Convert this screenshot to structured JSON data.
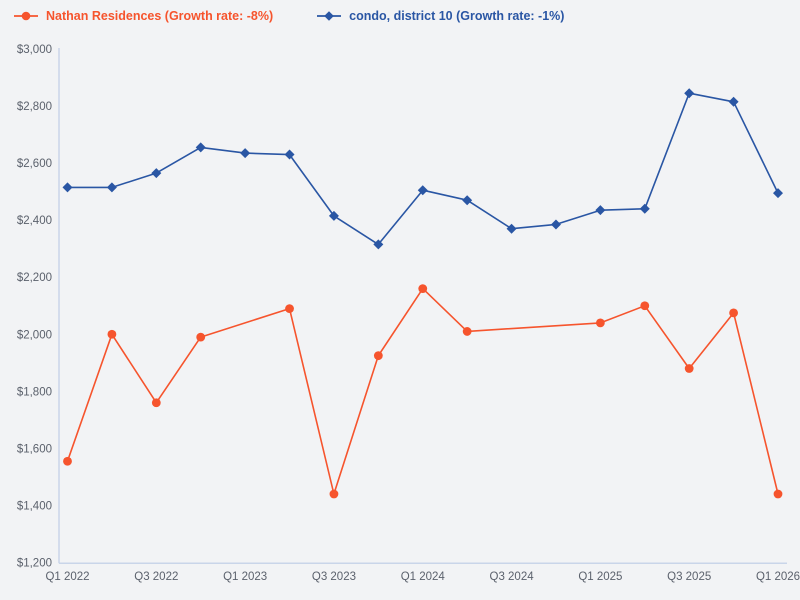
{
  "page": {
    "background_color": "#F2F3F5",
    "axis_color": "#C9D5E9",
    "tick_label_color": "#5B616C"
  },
  "legend": {
    "items": [
      {
        "label": "Nathan Residences (Growth rate: -8%)",
        "color": "#F6542D",
        "marker": "circle"
      },
      {
        "label": "condo, district 10 (Growth rate: -1%)",
        "color": "#2A56A4",
        "marker": "diamond"
      }
    ]
  },
  "chart_data": {
    "type": "line",
    "x": [
      "Q1 2022",
      "Q2 2022",
      "Q3 2022",
      "Q4 2022",
      "Q1 2023",
      "Q2 2023",
      "Q3 2023",
      "Q4 2023",
      "Q1 2024",
      "Q2 2024",
      "Q3 2024",
      "Q4 2024",
      "Q1 2025",
      "Q2 2025",
      "Q3 2025",
      "Q4 2025",
      "Q1 2026"
    ],
    "series": [
      {
        "name": "Nathan Residences",
        "legend_label": "Nathan Residences (Growth rate: -8%)",
        "growth_rate": "-8%",
        "color": "#F6542D",
        "marker": "circle",
        "values": [
          1555,
          2000,
          1760,
          1990,
          null,
          2090,
          1440,
          1925,
          2160,
          2010,
          null,
          null,
          2040,
          2100,
          1880,
          2075,
          1440
        ]
      },
      {
        "name": "condo, district 10",
        "legend_label": "condo, district 10 (Growth rate: -1%)",
        "growth_rate": "-1%",
        "color": "#2A56A4",
        "marker": "diamond",
        "values": [
          2515,
          2515,
          2565,
          2655,
          2635,
          2630,
          2415,
          2315,
          2505,
          2470,
          2370,
          2385,
          2435,
          2440,
          2845,
          2815,
          2495
        ]
      }
    ],
    "ylim": [
      1200,
      3000
    ],
    "y_tick_step": 200,
    "y_tick_labels": [
      "$1,200",
      "$1,400",
      "$1,600",
      "$1,800",
      "$2,000",
      "$2,200",
      "$2,400",
      "$2,600",
      "$2,800",
      "$3,000"
    ],
    "x_tick_labels": [
      "Q1 2022",
      "Q3 2022",
      "Q1 2023",
      "Q3 2023",
      "Q1 2024",
      "Q3 2024",
      "Q1 2025",
      "Q3 2025",
      "Q1 2026"
    ],
    "grid": false,
    "legend_position": "top-left",
    "y_value_format": "currency"
  }
}
